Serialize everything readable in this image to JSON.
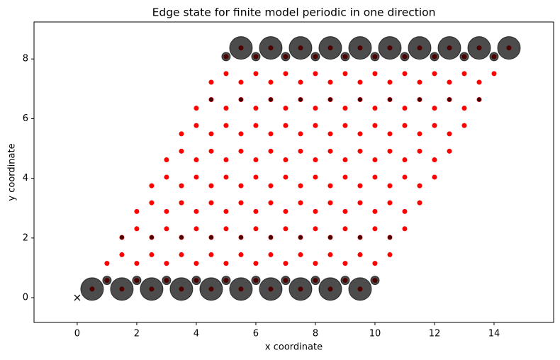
{
  "chart_data": {
    "type": "scatter",
    "title": "Edge state for finite model periodic in one direction",
    "xlabel": "x coordinate",
    "ylabel": "y coordinate",
    "xlim": [
      -1.45,
      16.0
    ],
    "ylim": [
      -0.83,
      9.24
    ],
    "xticks": [
      0,
      2,
      4,
      6,
      8,
      10,
      12,
      14
    ],
    "yticks": [
      0,
      2,
      4,
      6,
      8
    ],
    "grid": false,
    "origin_marker": {
      "x": 0,
      "y": 0,
      "color": "#000000"
    },
    "series": [
      {
        "color": "#ff0000",
        "alpha": 1,
        "x": [
          0.5,
          1.5,
          2.5,
          3.5,
          4.5,
          5.5,
          6.5,
          7.5,
          8.5,
          9.5,
          1,
          2,
          3,
          4,
          5,
          6,
          7,
          8,
          9,
          10,
          1,
          2,
          3,
          4,
          5,
          6,
          7,
          8,
          9,
          10,
          1.5,
          2.5,
          3.5,
          4.5,
          5.5,
          6.5,
          7.5,
          8.5,
          9.5,
          10.5,
          1.5,
          2.5,
          3.5,
          4.5,
          5.5,
          6.5,
          7.5,
          8.5,
          9.5,
          10.5,
          2,
          3,
          4,
          5,
          6,
          7,
          8,
          9,
          10,
          11,
          2,
          3,
          4,
          5,
          6,
          7,
          8,
          9,
          10,
          11,
          2.5,
          3.5,
          4.5,
          5.5,
          6.5,
          7.5,
          8.5,
          9.5,
          10.5,
          11.5,
          2.5,
          3.5,
          4.5,
          5.5,
          6.5,
          7.5,
          8.5,
          9.5,
          10.5,
          11.5,
          3,
          4,
          5,
          6,
          7,
          8,
          9,
          10,
          11,
          12,
          3,
          4,
          5,
          6,
          7,
          8,
          9,
          10,
          11,
          12,
          3.5,
          4.5,
          5.5,
          6.5,
          7.5,
          8.5,
          9.5,
          10.5,
          11.5,
          12.5,
          3.5,
          4.5,
          5.5,
          6.5,
          7.5,
          8.5,
          9.5,
          10.5,
          11.5,
          12.5,
          4,
          5,
          6,
          7,
          8,
          9,
          10,
          11,
          12,
          13,
          4,
          5,
          6,
          7,
          8,
          9,
          10,
          11,
          12,
          13,
          4.5,
          5.5,
          6.5,
          7.5,
          8.5,
          9.5,
          10.5,
          11.5,
          12.5,
          13.5,
          4.5,
          5.5,
          6.5,
          7.5,
          8.5,
          9.5,
          10.5,
          11.5,
          12.5,
          13.5,
          5,
          6,
          7,
          8,
          9,
          10,
          11,
          12,
          13,
          14,
          5,
          6,
          7,
          8,
          9,
          10,
          11,
          12,
          13,
          14,
          5.5,
          6.5,
          7.5,
          8.5,
          9.5,
          10.5,
          11.5,
          12.5,
          13.5,
          14.5
        ],
        "y": [
          0.29,
          0.29,
          0.29,
          0.29,
          0.29,
          0.29,
          0.29,
          0.29,
          0.29,
          0.29,
          0.58,
          0.58,
          0.58,
          0.58,
          0.58,
          0.58,
          0.58,
          0.58,
          0.58,
          0.58,
          1.15,
          1.15,
          1.15,
          1.15,
          1.15,
          1.15,
          1.15,
          1.15,
          1.15,
          1.15,
          1.44,
          1.44,
          1.44,
          1.44,
          1.44,
          1.44,
          1.44,
          1.44,
          1.44,
          1.44,
          2.02,
          2.02,
          2.02,
          2.02,
          2.02,
          2.02,
          2.02,
          2.02,
          2.02,
          2.02,
          2.31,
          2.31,
          2.31,
          2.31,
          2.31,
          2.31,
          2.31,
          2.31,
          2.31,
          2.31,
          2.89,
          2.89,
          2.89,
          2.89,
          2.89,
          2.89,
          2.89,
          2.89,
          2.89,
          2.89,
          3.18,
          3.18,
          3.18,
          3.18,
          3.18,
          3.18,
          3.18,
          3.18,
          3.18,
          3.18,
          3.75,
          3.75,
          3.75,
          3.75,
          3.75,
          3.75,
          3.75,
          3.75,
          3.75,
          3.75,
          4.04,
          4.04,
          4.04,
          4.04,
          4.04,
          4.04,
          4.04,
          4.04,
          4.04,
          4.04,
          4.62,
          4.62,
          4.62,
          4.62,
          4.62,
          4.62,
          4.62,
          4.62,
          4.62,
          4.62,
          4.91,
          4.91,
          4.91,
          4.91,
          4.91,
          4.91,
          4.91,
          4.91,
          4.91,
          4.91,
          5.49,
          5.49,
          5.49,
          5.49,
          5.49,
          5.49,
          5.49,
          5.49,
          5.49,
          5.49,
          5.77,
          5.77,
          5.77,
          5.77,
          5.77,
          5.77,
          5.77,
          5.77,
          5.77,
          5.77,
          6.35,
          6.35,
          6.35,
          6.35,
          6.35,
          6.35,
          6.35,
          6.35,
          6.35,
          6.35,
          6.64,
          6.64,
          6.64,
          6.64,
          6.64,
          6.64,
          6.64,
          6.64,
          6.64,
          6.64,
          7.22,
          7.22,
          7.22,
          7.22,
          7.22,
          7.22,
          7.22,
          7.22,
          7.22,
          7.22,
          7.51,
          7.51,
          7.51,
          7.51,
          7.51,
          7.51,
          7.51,
          7.51,
          7.51,
          7.51,
          8.08,
          8.08,
          8.08,
          8.08,
          8.08,
          8.08,
          8.08,
          8.08,
          8.08,
          8.08,
          8.37,
          8.37,
          8.37,
          8.37,
          8.37,
          8.37,
          8.37,
          8.37,
          8.37,
          8.37
        ],
        "size": [
          3.5
        ]
      },
      {
        "color": "#000000",
        "alpha": 0.7,
        "x": [
          0.5,
          1.5,
          2.5,
          3.5,
          4.5,
          5.5,
          6.5,
          7.5,
          8.5,
          9.5,
          1,
          2,
          3,
          4,
          5,
          6,
          7,
          8,
          9,
          10,
          1.5,
          2.5,
          3.5,
          4.5,
          5.5,
          6.5,
          7.5,
          8.5,
          9.5,
          10.5,
          4.5,
          5.5,
          6.5,
          7.5,
          8.5,
          9.5,
          10.5,
          11.5,
          12.5,
          13.5,
          5,
          6,
          7,
          8,
          9,
          10,
          11,
          12,
          13,
          14,
          5.5,
          6.5,
          7.5,
          8.5,
          9.5,
          10.5,
          11.5,
          12.5,
          13.5,
          14.5
        ],
        "y": [
          0.29,
          0.29,
          0.29,
          0.29,
          0.29,
          0.29,
          0.29,
          0.29,
          0.29,
          0.29,
          0.58,
          0.58,
          0.58,
          0.58,
          0.58,
          0.58,
          0.58,
          0.58,
          0.58,
          0.58,
          2.02,
          2.02,
          2.02,
          2.02,
          2.02,
          2.02,
          2.02,
          2.02,
          2.02,
          2.02,
          6.64,
          6.64,
          6.64,
          6.64,
          6.64,
          6.64,
          6.64,
          6.64,
          6.64,
          6.64,
          8.08,
          8.08,
          8.08,
          8.08,
          8.08,
          8.08,
          8.08,
          8.08,
          8.08,
          8.08,
          8.37,
          8.37,
          8.37,
          8.37,
          8.37,
          8.37,
          8.37,
          8.37,
          8.37,
          8.37
        ],
        "size": [
          16,
          16,
          16,
          16,
          16,
          16,
          16,
          16,
          16,
          16,
          6,
          6,
          6,
          6,
          6,
          6,
          6,
          6,
          6,
          6,
          2.5,
          2.5,
          2.5,
          2.5,
          2.5,
          2.5,
          2.5,
          2.5,
          2.5,
          2.5,
          2.5,
          2.5,
          2.5,
          2.5,
          2.5,
          2.5,
          2.5,
          2.5,
          2.5,
          2.5,
          6,
          6,
          6,
          6,
          6,
          6,
          6,
          6,
          6,
          6,
          16,
          16,
          16,
          16,
          16,
          16,
          16,
          16,
          16,
          16
        ]
      }
    ]
  }
}
